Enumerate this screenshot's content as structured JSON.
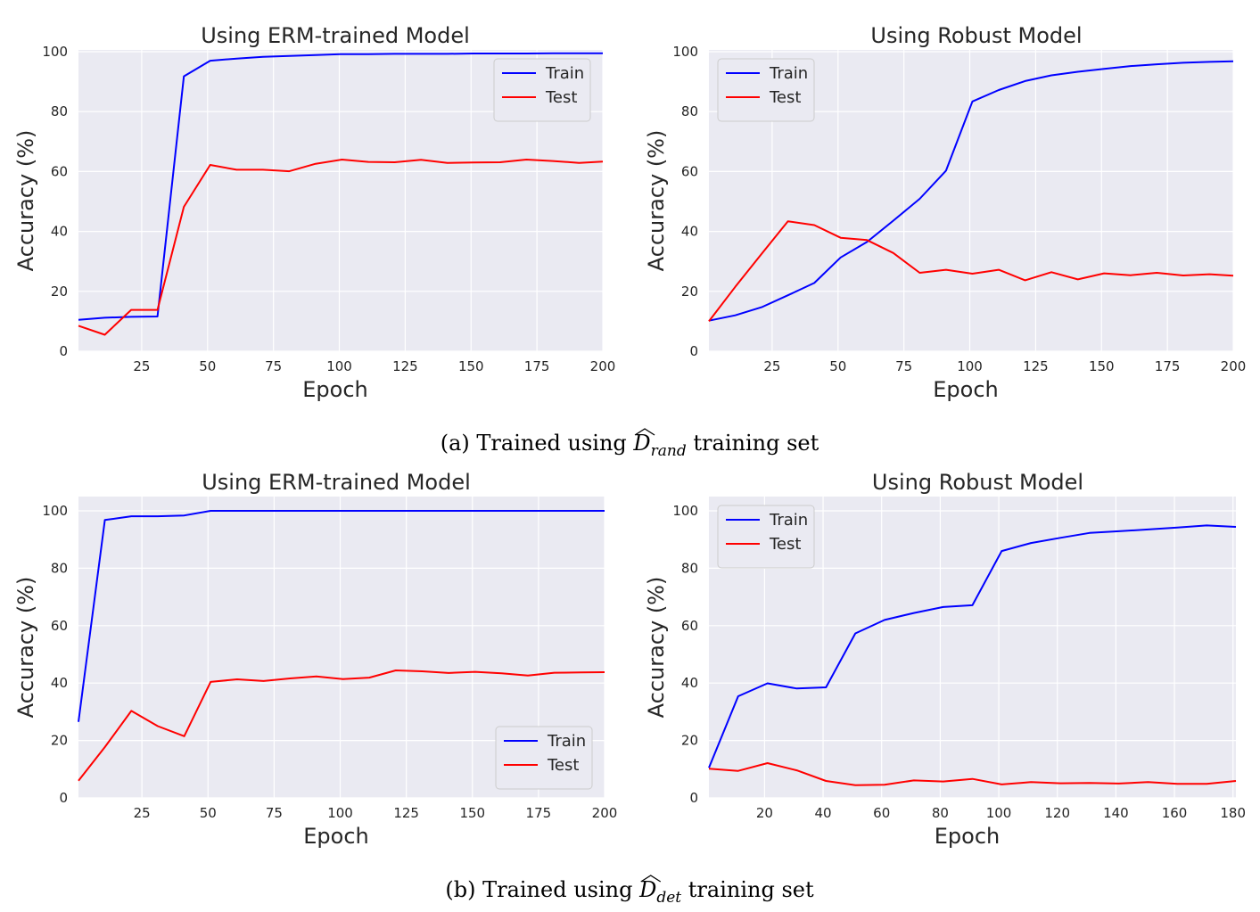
{
  "captions": [
    {
      "prefix": "(a) Trained using ",
      "symbol": "D",
      "hat": "^",
      "subscript": "rand",
      "suffix": " training set"
    },
    {
      "prefix": "(b) Trained using ",
      "symbol": "D",
      "hat": "^",
      "subscript": "det",
      "suffix": " training set"
    }
  ],
  "colors": {
    "train": "#0000ff",
    "test": "#ff0000",
    "panel_bg": "#eaeaf2",
    "grid": "#ffffff"
  },
  "chart_data": [
    {
      "type": "line",
      "title": "Using ERM-trained Model",
      "xlabel": "Epoch",
      "ylabel": "Accuracy (%)",
      "xlim": [
        1,
        200
      ],
      "ylim": [
        0,
        100
      ],
      "xticks": [
        25,
        50,
        75,
        100,
        125,
        150,
        175,
        200
      ],
      "yticks": [
        0,
        20,
        40,
        60,
        80,
        100
      ],
      "legend": "top-right",
      "grid": true,
      "x": [
        1,
        11,
        21,
        31,
        41,
        51,
        61,
        71,
        81,
        91,
        101,
        111,
        121,
        131,
        141,
        151,
        161,
        171,
        181,
        191,
        200
      ],
      "series": [
        {
          "name": "Train",
          "color": "#0000ff",
          "values": [
            10.5,
            11.2,
            11.5,
            11.6,
            91.8,
            97.0,
            97.7,
            98.3,
            98.6,
            98.9,
            99.2,
            99.2,
            99.3,
            99.3,
            99.3,
            99.4,
            99.4,
            99.4,
            99.5,
            99.5,
            99.5
          ]
        },
        {
          "name": "Test",
          "color": "#ff0000",
          "values": [
            8.5,
            5.5,
            13.8,
            13.8,
            48.2,
            62.2,
            60.6,
            60.6,
            60.1,
            62.6,
            64.0,
            63.2,
            63.1,
            63.9,
            62.9,
            63.0,
            63.1,
            64.0,
            63.5,
            62.9,
            63.3
          ]
        }
      ]
    },
    {
      "type": "line",
      "title": "Using Robust Model",
      "xlabel": "Epoch",
      "ylabel": "Accuracy (%)",
      "xlim": [
        1,
        200
      ],
      "ylim": [
        0,
        100
      ],
      "xticks": [
        25,
        50,
        75,
        100,
        125,
        150,
        175,
        200
      ],
      "yticks": [
        0,
        20,
        40,
        60,
        80,
        100
      ],
      "legend": "top-left",
      "grid": true,
      "x": [
        1,
        11,
        21,
        31,
        41,
        51,
        61,
        71,
        81,
        91,
        101,
        111,
        121,
        131,
        141,
        151,
        161,
        171,
        181,
        191,
        200
      ],
      "series": [
        {
          "name": "Train",
          "color": "#0000ff",
          "values": [
            10.2,
            12.0,
            14.7,
            18.7,
            22.8,
            31.3,
            36.5,
            43.6,
            50.9,
            60.3,
            83.4,
            87.2,
            90.2,
            92.1,
            93.3,
            94.3,
            95.2,
            95.8,
            96.3,
            96.6,
            96.8
          ]
        },
        {
          "name": "Test",
          "color": "#ff0000",
          "values": [
            10.0,
            21.5,
            32.5,
            43.4,
            42.1,
            37.9,
            37.1,
            32.8,
            26.2,
            27.2,
            25.9,
            27.2,
            23.7,
            26.4,
            24.0,
            26.0,
            25.4,
            26.2,
            25.3,
            25.7,
            25.2
          ]
        }
      ]
    },
    {
      "type": "line",
      "title": "Using ERM-trained Model",
      "xlabel": "Epoch",
      "ylabel": "Accuracy (%)",
      "xlim": [
        1,
        200
      ],
      "ylim": [
        0,
        100
      ],
      "xticks": [
        25,
        50,
        75,
        100,
        125,
        150,
        175,
        200
      ],
      "yticks": [
        0,
        20,
        40,
        60,
        80,
        100
      ],
      "legend": "bottom-right",
      "grid": true,
      "x": [
        1,
        11,
        21,
        31,
        41,
        51,
        61,
        71,
        81,
        91,
        101,
        111,
        121,
        131,
        141,
        151,
        161,
        171,
        181,
        191,
        200
      ],
      "series": [
        {
          "name": "Train",
          "color": "#0000ff",
          "values": [
            26.5,
            96.8,
            98.1,
            98.1,
            98.4,
            100.0,
            100.0,
            100.0,
            100.0,
            100.0,
            100.0,
            100.0,
            100.0,
            100.0,
            100.0,
            100.0,
            100.0,
            100.0,
            100.0,
            100.0,
            100.0
          ]
        },
        {
          "name": "Test",
          "color": "#ff0000",
          "values": [
            6.0,
            17.7,
            30.3,
            25.0,
            21.5,
            40.4,
            41.3,
            40.7,
            41.6,
            42.3,
            41.4,
            41.9,
            44.4,
            44.1,
            43.5,
            43.9,
            43.4,
            42.6,
            43.6,
            43.7,
            43.8
          ]
        }
      ]
    },
    {
      "type": "line",
      "title": "Using Robust Model",
      "xlabel": "Epoch",
      "ylabel": "Accuracy (%)",
      "xlim": [
        1,
        181
      ],
      "ylim": [
        0,
        100
      ],
      "xticks": [
        20,
        40,
        60,
        80,
        100,
        120,
        140,
        160,
        180
      ],
      "yticks": [
        0,
        20,
        40,
        60,
        80,
        100
      ],
      "legend": "top-left",
      "grid": true,
      "x": [
        1,
        11,
        21,
        31,
        41,
        51,
        61,
        71,
        81,
        91,
        101,
        111,
        121,
        131,
        141,
        151,
        161,
        171,
        181
      ],
      "series": [
        {
          "name": "Train",
          "color": "#0000ff",
          "values": [
            10.5,
            35.4,
            39.9,
            38.1,
            38.5,
            57.3,
            62.0,
            64.4,
            66.5,
            67.1,
            86.0,
            88.8,
            90.6,
            92.3,
            92.9,
            93.5,
            94.2,
            94.9,
            94.4
          ]
        },
        {
          "name": "Test",
          "color": "#ff0000",
          "values": [
            10.2,
            9.4,
            12.1,
            9.6,
            5.9,
            4.4,
            4.6,
            6.1,
            5.7,
            6.6,
            4.7,
            5.5,
            5.1,
            5.2,
            5.0,
            5.5,
            4.9,
            4.9,
            5.9
          ]
        }
      ]
    }
  ]
}
